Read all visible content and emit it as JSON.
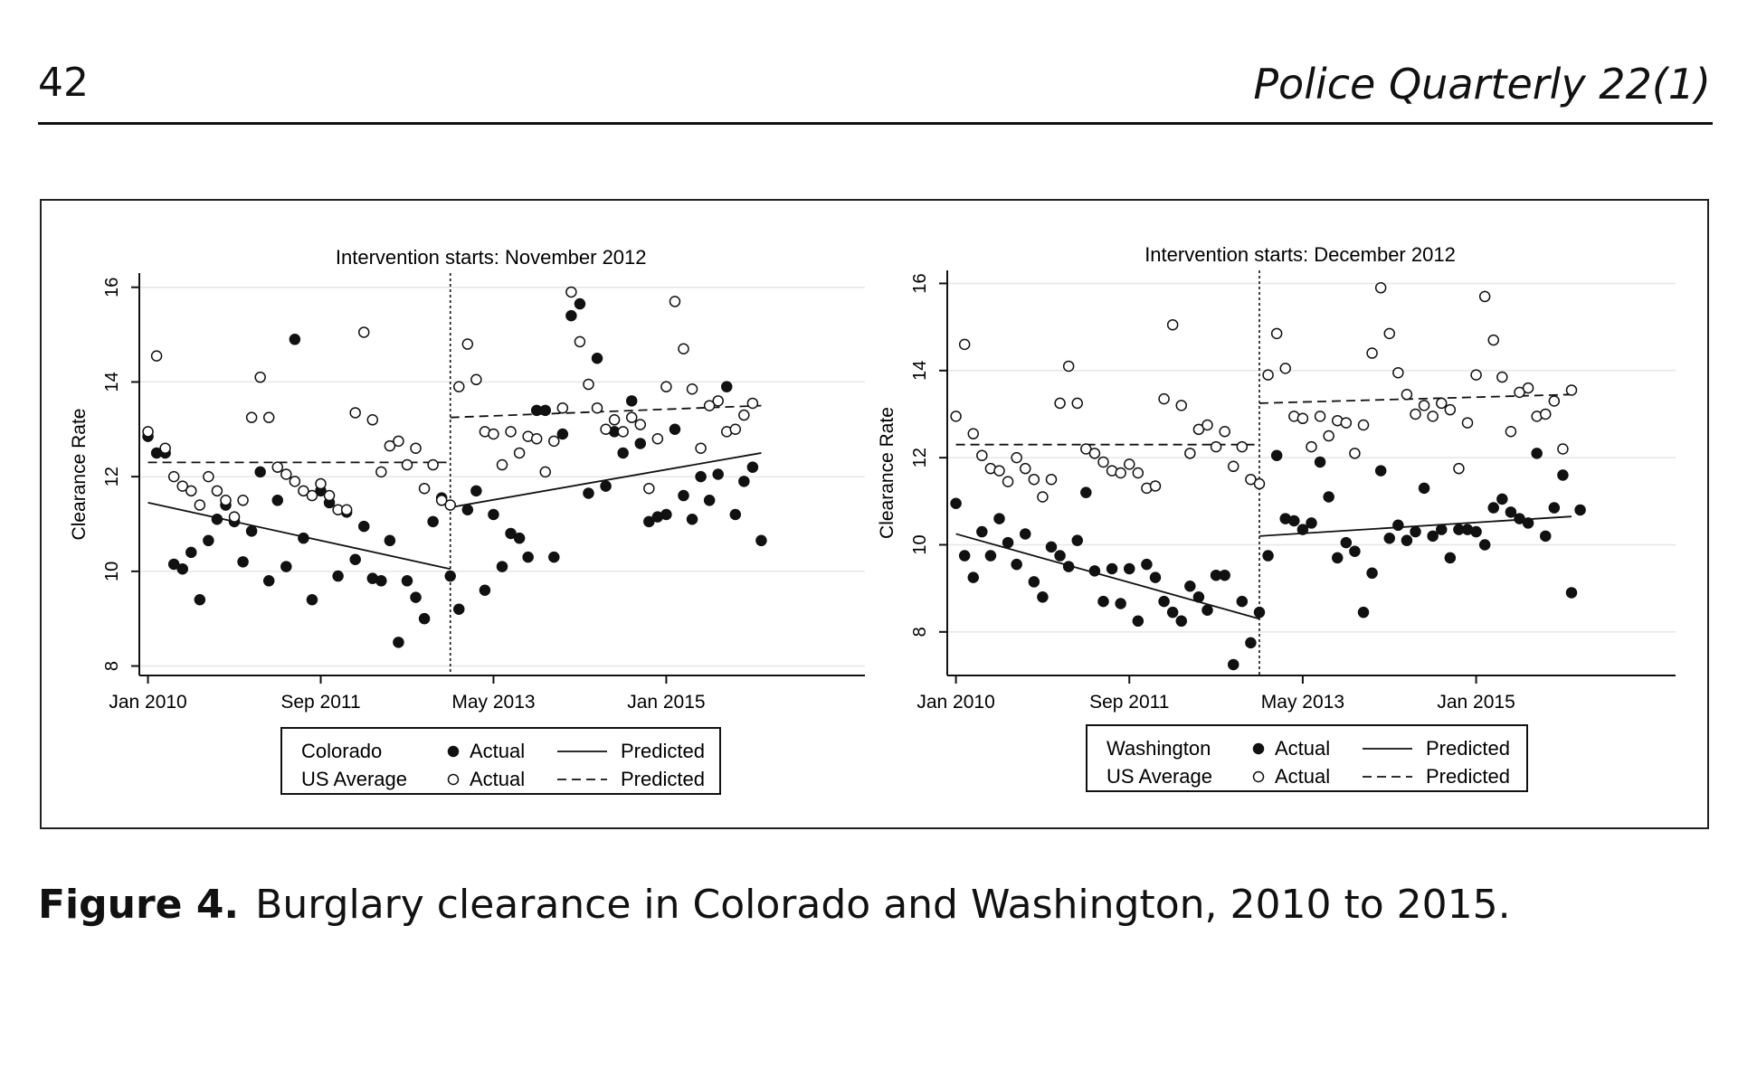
{
  "header": {
    "page_number": "42",
    "journal": "Police Quarterly 22(1)"
  },
  "caption": {
    "label": "Figure 4.",
    "text": "Burglary clearance in Colorado and Washington, 2010 to 2015."
  },
  "chart_data": [
    {
      "type": "scatter",
      "title": "Intervention starts: November 2012",
      "ylabel": "Clearance Rate",
      "xlabel": "",
      "x_unit": "months since Jan 2010",
      "xlim": [
        -1,
        83
      ],
      "ylim": [
        7.8,
        16.3
      ],
      "x_ticks": [
        {
          "v": 0,
          "label": "Jan 2010"
        },
        {
          "v": 20,
          "label": "Sep 2011"
        },
        {
          "v": 40,
          "label": "May 2013"
        },
        {
          "v": 60,
          "label": "Jan 2015"
        }
      ],
      "y_ticks": [
        8,
        10,
        12,
        14,
        16
      ],
      "grid": true,
      "intervention_x": 35,
      "legend": {
        "placement": "bottom",
        "row1_name": "Colorado",
        "row2_name": "US Average",
        "actual_label": "Actual",
        "predicted_label": "Predicted"
      },
      "series": [
        {
          "name": "Colorado",
          "kind": "actual",
          "marker": "filled",
          "values": [
            12.85,
            12.5,
            12.5,
            10.15,
            10.05,
            10.4,
            9.4,
            10.65,
            11.1,
            11.4,
            11.05,
            10.2,
            10.85,
            12.1,
            9.8,
            11.5,
            10.1,
            14.9,
            10.7,
            9.4,
            11.7,
            11.45,
            9.9,
            11.25,
            10.25,
            10.95,
            9.85,
            9.8,
            10.65,
            8.5,
            9.8,
            9.45,
            9.0,
            11.05,
            11.55,
            9.9,
            9.2,
            11.3,
            11.7,
            9.6,
            11.2,
            10.1,
            10.8,
            10.7,
            10.3,
            13.4,
            13.4,
            10.3,
            12.9,
            15.4,
            15.65,
            11.65,
            14.5,
            11.8,
            12.95,
            12.5,
            13.6,
            12.7,
            11.05,
            11.15,
            11.2,
            13.0,
            11.6,
            11.1,
            12.0,
            11.5,
            12.05,
            13.9,
            11.2,
            11.9,
            12.2,
            10.65
          ]
        },
        {
          "name": "US Average",
          "kind": "actual",
          "marker": "hollow",
          "values": [
            12.95,
            14.55,
            12.6,
            12.0,
            11.8,
            11.7,
            11.4,
            12.0,
            11.7,
            11.5,
            11.15,
            11.5,
            13.25,
            14.1,
            13.25,
            12.2,
            12.05,
            11.9,
            11.7,
            11.6,
            11.85,
            11.6,
            11.3,
            11.3,
            13.35,
            15.05,
            13.2,
            12.1,
            12.65,
            12.75,
            12.25,
            12.6,
            11.75,
            12.25,
            11.5,
            11.4,
            13.9,
            14.8,
            14.05,
            12.95,
            12.9,
            12.25,
            12.95,
            12.5,
            12.85,
            12.8,
            12.1,
            12.75,
            13.45,
            15.9,
            14.85,
            13.95,
            13.45,
            13.0,
            13.2,
            12.95,
            13.25,
            13.1,
            11.75,
            12.8,
            13.9,
            15.7,
            14.7,
            13.85,
            12.6,
            13.5,
            13.6,
            12.95,
            13.0,
            13.3,
            13.55
          ]
        }
      ],
      "predicted": [
        {
          "name": "Colorado",
          "style": "solid",
          "segments": [
            [
              [
                0,
                11.45
              ],
              [
                35,
                10.05
              ]
            ],
            [
              [
                35,
                11.35
              ],
              [
                71,
                12.5
              ]
            ]
          ]
        },
        {
          "name": "US Average",
          "style": "dashed",
          "segments": [
            [
              [
                0,
                12.3
              ],
              [
                35,
                12.3
              ]
            ],
            [
              [
                35,
                13.25
              ],
              [
                71,
                13.5
              ]
            ]
          ]
        }
      ]
    },
    {
      "type": "scatter",
      "title": "Intervention starts: December 2012",
      "ylabel": "Clearance Rate",
      "xlabel": "",
      "x_unit": "months since Jan 2010",
      "xlim": [
        -1,
        83
      ],
      "ylim": [
        7.0,
        16.3
      ],
      "x_ticks": [
        {
          "v": 0,
          "label": "Jan 2010"
        },
        {
          "v": 20,
          "label": "Sep 2011"
        },
        {
          "v": 40,
          "label": "May 2013"
        },
        {
          "v": 60,
          "label": "Jan 2015"
        }
      ],
      "y_ticks": [
        8,
        10,
        12,
        14,
        16
      ],
      "grid": true,
      "intervention_x": 35,
      "legend": {
        "placement": "bottom",
        "row1_name": "Washington",
        "row2_name": "US Average",
        "actual_label": "Actual",
        "predicted_label": "Predicted"
      },
      "series": [
        {
          "name": "Washington",
          "kind": "actual",
          "marker": "filled",
          "values": [
            10.95,
            9.75,
            9.25,
            10.3,
            9.75,
            10.6,
            10.05,
            9.55,
            10.25,
            9.15,
            8.8,
            9.95,
            9.75,
            9.5,
            10.1,
            11.2,
            9.4,
            8.7,
            9.45,
            8.65,
            9.45,
            8.25,
            9.55,
            9.25,
            8.7,
            8.45,
            8.25,
            9.05,
            8.8,
            8.5,
            9.3,
            9.3,
            7.25,
            8.7,
            7.75,
            8.45,
            9.75,
            12.05,
            10.6,
            10.55,
            10.35,
            10.5,
            11.9,
            11.1,
            9.7,
            10.05,
            9.85,
            8.45,
            9.35,
            11.7,
            10.15,
            10.45,
            10.1,
            10.3,
            11.3,
            10.2,
            10.35,
            9.7,
            10.35,
            10.35,
            10.3,
            10.0,
            10.85,
            11.05,
            10.75,
            10.6,
            10.5,
            12.1,
            10.2,
            10.85,
            11.6,
            8.9,
            10.8
          ]
        },
        {
          "name": "US Average",
          "kind": "actual",
          "marker": "hollow",
          "values": [
            12.95,
            14.6,
            12.55,
            12.05,
            11.75,
            11.7,
            11.45,
            12.0,
            11.75,
            11.5,
            11.1,
            11.5,
            13.25,
            14.1,
            13.25,
            12.2,
            12.1,
            11.9,
            11.7,
            11.65,
            11.85,
            11.65,
            11.3,
            11.35,
            13.35,
            15.05,
            13.2,
            12.1,
            12.65,
            12.75,
            12.25,
            12.6,
            11.8,
            12.25,
            11.5,
            11.4,
            13.9,
            14.85,
            14.05,
            12.95,
            12.9,
            12.25,
            12.95,
            12.5,
            12.85,
            12.8,
            12.1,
            12.75,
            14.4,
            15.9,
            14.85,
            13.95,
            13.45,
            13.0,
            13.2,
            12.95,
            13.25,
            13.1,
            11.75,
            12.8,
            13.9,
            15.7,
            14.7,
            13.85,
            12.6,
            13.5,
            13.6,
            12.95,
            13.0,
            13.3,
            12.2,
            13.55
          ]
        }
      ],
      "predicted": [
        {
          "name": "Washington",
          "style": "solid",
          "segments": [
            [
              [
                0,
                10.25
              ],
              [
                35,
                8.3
              ]
            ],
            [
              [
                35,
                10.2
              ],
              [
                71,
                10.65
              ]
            ]
          ]
        },
        {
          "name": "US Average",
          "style": "dashed",
          "segments": [
            [
              [
                0,
                12.3
              ],
              [
                35,
                12.3
              ]
            ],
            [
              [
                35,
                13.25
              ],
              [
                71,
                13.45
              ]
            ]
          ]
        }
      ]
    }
  ]
}
